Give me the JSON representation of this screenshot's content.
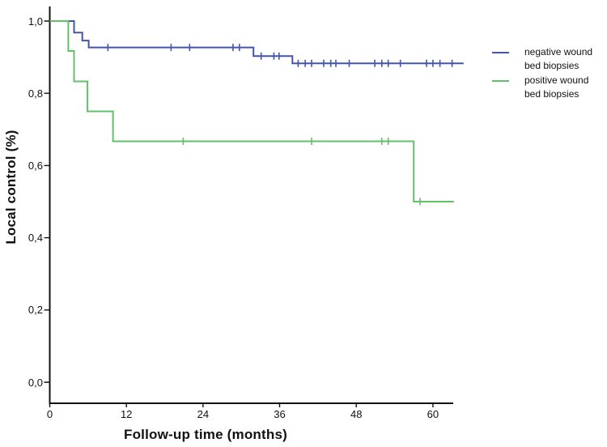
{
  "figure": {
    "background": "#ffffff",
    "axis_color": "#111111"
  },
  "chart_data": {
    "type": "line",
    "subtype": "kaplan-meier-step",
    "title": "",
    "xlabel": "Follow-up time (months)",
    "ylabel": "Local control (%)",
    "xlim": [
      0,
      66
    ],
    "ylim": [
      0.0,
      1.0
    ],
    "grid": false,
    "legend_position": "right",
    "x_ticks": {
      "values": [
        0,
        12,
        24,
        36,
        48,
        60
      ],
      "labels": [
        "0",
        "12",
        "24",
        "36",
        "48",
        "60"
      ]
    },
    "y_ticks": {
      "values": [
        0.0,
        0.2,
        0.4,
        0.6,
        0.8,
        1.0
      ],
      "labels": [
        "0,0",
        "0,2",
        "0,4",
        "0,6",
        "0,8",
        "1,0"
      ]
    },
    "series": [
      {
        "name": "negative wound bed biopsies",
        "legend_lines": [
          "negative wound",
          "bed biopsies"
        ],
        "color": "#4355ae",
        "steps": [
          [
            0,
            1.0
          ],
          [
            3.8,
            0.968
          ],
          [
            5.1,
            0.946
          ],
          [
            6.1,
            0.927
          ],
          [
            31.9,
            0.903
          ],
          [
            38.0,
            0.883
          ]
        ],
        "end_month": 64.8,
        "censor_marks": [
          [
            9.1,
            0.927
          ],
          [
            19.0,
            0.927
          ],
          [
            21.9,
            0.927
          ],
          [
            28.7,
            0.927
          ],
          [
            29.7,
            0.927
          ],
          [
            33.1,
            0.903
          ],
          [
            35.1,
            0.903
          ],
          [
            35.9,
            0.903
          ],
          [
            38.9,
            0.883
          ],
          [
            40.0,
            0.883
          ],
          [
            41.0,
            0.883
          ],
          [
            42.9,
            0.883
          ],
          [
            44.0,
            0.883
          ],
          [
            44.8,
            0.883
          ],
          [
            46.9,
            0.883
          ],
          [
            50.9,
            0.883
          ],
          [
            52.0,
            0.883
          ],
          [
            53.0,
            0.883
          ],
          [
            54.9,
            0.883
          ],
          [
            59.0,
            0.883
          ],
          [
            60.0,
            0.883
          ],
          [
            61.1,
            0.883
          ],
          [
            63.0,
            0.883
          ]
        ]
      },
      {
        "name": "positive wound bed biopsies",
        "legend_lines": [
          "positive wound",
          "bed biopsies"
        ],
        "color": "#62c06a",
        "steps": [
          [
            0,
            1.0
          ],
          [
            2.9,
            0.917
          ],
          [
            3.8,
            0.833
          ],
          [
            5.9,
            0.75
          ],
          [
            9.9,
            0.667
          ],
          [
            57.0,
            0.5
          ]
        ],
        "end_month": 63.3,
        "censor_marks": [
          [
            20.9,
            0.667
          ],
          [
            41.0,
            0.667
          ],
          [
            52.0,
            0.667
          ],
          [
            53.0,
            0.667
          ],
          [
            58.0,
            0.5
          ]
        ]
      }
    ]
  }
}
